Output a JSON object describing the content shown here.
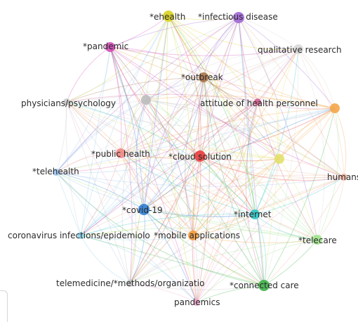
{
  "network": {
    "nodes": [
      {
        "id": "ehealth",
        "label": "*ehealth",
        "color": "#d9d21f",
        "size": "large"
      },
      {
        "id": "infectious",
        "label": "*infectious disease",
        "color": "#a066d6",
        "size": "large"
      },
      {
        "id": "pandemic_star",
        "label": "*pandemic",
        "color": "#d44ab8",
        "size": "medium"
      },
      {
        "id": "qualitative",
        "label": "qualitative research",
        "color": "#d8d8d8",
        "size": "medium"
      },
      {
        "id": "outbreak",
        "label": "*outbreak",
        "color": "#a9734a",
        "size": "medium"
      },
      {
        "id": "physicians",
        "label": "physicians/psychology",
        "color": "#c9c9c9",
        "size": "small"
      },
      {
        "id": "gray_unlabeled",
        "label": "",
        "color": "#bdbdbd",
        "size": "medium"
      },
      {
        "id": "attitude",
        "label": "attitude of health personnel",
        "color": "#d25c8f",
        "size": "small"
      },
      {
        "id": "orange_unlabeled",
        "label": "",
        "color": "#f4a64a",
        "size": "medium"
      },
      {
        "id": "public_health",
        "label": "*public health",
        "color": "#ee8b86",
        "size": "medium"
      },
      {
        "id": "cloud",
        "label": "*cloud solution",
        "color": "#ea3b3b",
        "size": "large"
      },
      {
        "id": "yellow_unlabeled",
        "label": "",
        "color": "#e3e06a",
        "size": "medium"
      },
      {
        "id": "telehealth",
        "label": "*telehealth",
        "color": "#9fc3ef",
        "size": "small"
      },
      {
        "id": "humans",
        "label": "humans",
        "color": "#f0b4a0",
        "size": "small"
      },
      {
        "id": "covid",
        "label": "*covid-19",
        "color": "#2f7fd6",
        "size": "large"
      },
      {
        "id": "internet",
        "label": "*internet",
        "color": "#2ec5c5",
        "size": "medium"
      },
      {
        "id": "coronavirus",
        "label": "coronavirus infections/epidemiolo",
        "color": "#8cd0ea",
        "size": "small"
      },
      {
        "id": "mobile",
        "label": "*mobile applications",
        "color": "#f39a3a",
        "size": "medium"
      },
      {
        "id": "telecare",
        "label": "*telecare",
        "color": "#9ee38c",
        "size": "medium"
      },
      {
        "id": "telemedicine",
        "label": "telemedicine/*methods/organizatio",
        "color": "#c4c4c4",
        "size": "small"
      },
      {
        "id": "connected",
        "label": "*connected care",
        "color": "#3fb34a",
        "size": "large"
      },
      {
        "id": "pandemics",
        "label": "pandemics",
        "color": "#f0a6cf",
        "size": "small"
      }
    ]
  }
}
